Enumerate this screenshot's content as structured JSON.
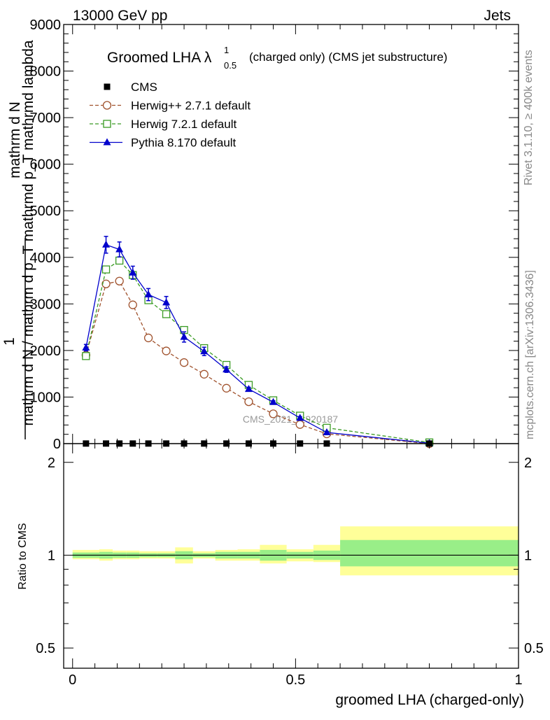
{
  "header": {
    "left": "13000 GeV pp",
    "right": "Jets"
  },
  "side_labels": {
    "top": "Rivet 3.1.10, ≥ 400k events",
    "bottom": "mcplots.cern.ch [arXiv:1306.3436]"
  },
  "watermark": "CMS_2021_I1920187",
  "chart_data": [
    {
      "type": "line",
      "title": {
        "main": "Groomed LHA λ",
        "sup": "1",
        "sub": "0.5",
        "rest": "(charged only) (CMS jet substructure)"
      },
      "ylabel": {
        "one": "1",
        "den": "mathrm d N / mathrm d p_T mathrmd p_T mathrmd lambda",
        "num": "mathrm d N"
      },
      "xlim": [
        -0.02,
        1.0
      ],
      "ylim": [
        0,
        9000
      ],
      "yticks": [
        0,
        1000,
        2000,
        3000,
        4000,
        5000,
        6000,
        7000,
        8000,
        9000
      ],
      "ytick_labels": [
        "0",
        "1000",
        "2000",
        "3000",
        "4000",
        "5000",
        "6000",
        "7000",
        "8000",
        "9000"
      ],
      "x": [
        0.03,
        0.075,
        0.105,
        0.135,
        0.17,
        0.21,
        0.25,
        0.295,
        0.345,
        0.395,
        0.45,
        0.51,
        0.57,
        0.8
      ],
      "series": [
        {
          "name": "CMS",
          "marker": "square-filled",
          "color": "#000000",
          "values": [
            2,
            2,
            2,
            2,
            2,
            2,
            2,
            2,
            2,
            2,
            2,
            2,
            2,
            2
          ]
        },
        {
          "name": "Herwig++ 2.7.1 default",
          "marker": "circle-open",
          "color": "#a0522d",
          "dash": true,
          "values": [
            1900,
            3430,
            3490,
            2980,
            2270,
            1990,
            1740,
            1490,
            1190,
            900,
            640,
            410,
            210,
            0
          ]
        },
        {
          "name": "Herwig 7.2.1 default",
          "marker": "square-open",
          "color": "#3a9b24",
          "dash": true,
          "values": [
            1880,
            3740,
            3930,
            3620,
            3080,
            2780,
            2440,
            2050,
            1690,
            1260,
            930,
            600,
            340,
            25
          ]
        },
        {
          "name": "Pythia 8.170 default",
          "marker": "triangle-filled",
          "color": "#0000cc",
          "dash": false,
          "values": [
            2060,
            4270,
            4170,
            3670,
            3200,
            3030,
            2290,
            1980,
            1590,
            1170,
            890,
            550,
            240,
            10
          ],
          "errors": [
            70,
            180,
            160,
            140,
            130,
            130,
            110,
            90,
            60,
            40,
            30,
            30,
            20,
            5
          ]
        }
      ]
    },
    {
      "type": "area",
      "ylabel": "Ratio to CMS",
      "xlabel": "groomed LHA (charged-only)",
      "xlim": [
        -0.02,
        1.0
      ],
      "ylim": [
        0.43,
        2.3
      ],
      "yticks": [
        0.5,
        1,
        2
      ],
      "ytick_labels": [
        "0.5",
        "1",
        "2"
      ],
      "xticks": [
        0,
        0.5,
        1
      ],
      "xtick_labels": [
        "0",
        "0.5",
        "1"
      ],
      "reference_line": 1,
      "bin_edges": [
        0,
        0.06,
        0.09,
        0.12,
        0.15,
        0.19,
        0.23,
        0.27,
        0.32,
        0.37,
        0.42,
        0.48,
        0.54,
        0.6,
        1.0
      ],
      "band_inner": [
        [
          0.98,
          1.02
        ],
        [
          0.975,
          1.025
        ],
        [
          0.98,
          1.02
        ],
        [
          0.98,
          1.02
        ],
        [
          0.985,
          1.015
        ],
        [
          0.985,
          1.015
        ],
        [
          0.97,
          1.03
        ],
        [
          0.985,
          1.015
        ],
        [
          0.975,
          1.025
        ],
        [
          0.975,
          1.025
        ],
        [
          0.96,
          1.04
        ],
        [
          0.975,
          1.025
        ],
        [
          0.965,
          1.035
        ],
        [
          0.92,
          1.12
        ]
      ],
      "band_outer": [
        [
          0.97,
          1.04
        ],
        [
          0.96,
          1.045
        ],
        [
          0.97,
          1.035
        ],
        [
          0.97,
          1.035
        ],
        [
          0.975,
          1.03
        ],
        [
          0.975,
          1.03
        ],
        [
          0.94,
          1.06
        ],
        [
          0.975,
          1.03
        ],
        [
          0.96,
          1.04
        ],
        [
          0.96,
          1.045
        ],
        [
          0.94,
          1.08
        ],
        [
          0.955,
          1.045
        ],
        [
          0.95,
          1.08
        ],
        [
          0.86,
          1.24
        ]
      ]
    }
  ]
}
